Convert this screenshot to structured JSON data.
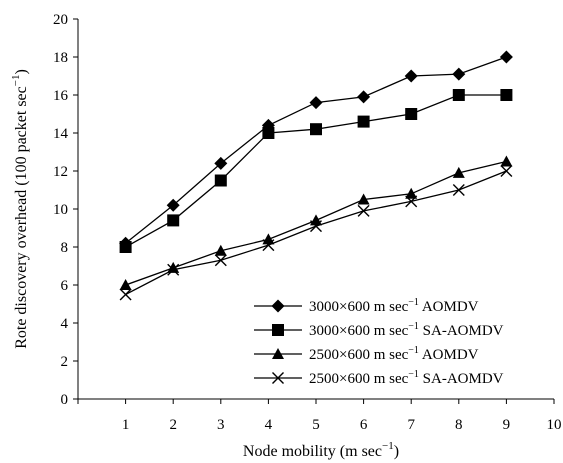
{
  "chart_data": {
    "type": "line",
    "title": "",
    "xlabel": "Node mobility (m sec",
    "xlabel_sup": "−1",
    "xlabel_end": ")",
    "ylabel": "Rote discovery overhead (100 packet sec",
    "ylabel_sup": "−1",
    "ylabel_end": ")",
    "xlim": [
      0,
      10
    ],
    "ylim": [
      0,
      20
    ],
    "x_ticks": [
      1,
      2,
      3,
      4,
      5,
      6,
      7,
      8,
      9,
      10
    ],
    "y_ticks": [
      0,
      2,
      4,
      6,
      8,
      10,
      12,
      14,
      16,
      18,
      20
    ],
    "grid": false,
    "legend_position": "bottom-right",
    "x": [
      1,
      2,
      3,
      4,
      5,
      6,
      7,
      8,
      9
    ],
    "series": [
      {
        "name": "3000×600 m sec",
        "name_sup": "−1",
        "name_suffix": " AOMDV",
        "marker": "diamond",
        "values": [
          8.2,
          10.2,
          12.4,
          14.4,
          15.6,
          15.9,
          17.0,
          17.1,
          18.0
        ]
      },
      {
        "name": "3000×600 m sec",
        "name_sup": "−1",
        "name_suffix": " SA-AOMDV",
        "marker": "square",
        "values": [
          8.0,
          9.4,
          11.5,
          14.0,
          14.2,
          14.6,
          15.0,
          16.0,
          16.0
        ]
      },
      {
        "name": "2500×600 m sec",
        "name_sup": "−1",
        "name_suffix": " AOMDV",
        "marker": "triangle",
        "values": [
          6.0,
          6.9,
          7.8,
          8.4,
          9.4,
          10.5,
          10.8,
          11.9,
          12.5
        ]
      },
      {
        "name": "2500×600 m sec",
        "name_sup": "−1",
        "name_suffix": " SA-AOMDV",
        "marker": "x",
        "values": [
          5.5,
          6.8,
          7.3,
          8.1,
          9.1,
          9.9,
          10.4,
          11.0,
          12.0
        ]
      }
    ]
  }
}
